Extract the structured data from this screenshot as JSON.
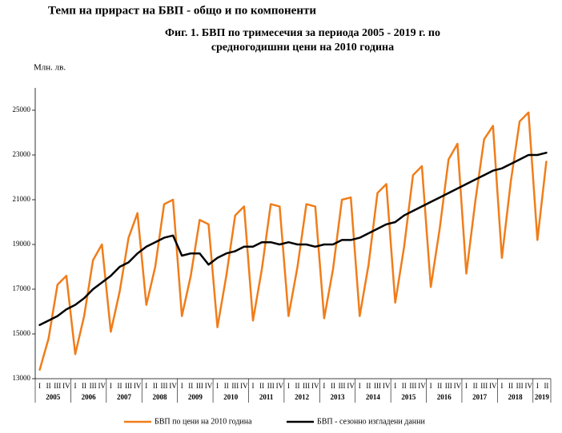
{
  "header": {
    "title": "Темп на прираст на БВП - общо и по компоненти"
  },
  "chart_data": {
    "type": "line",
    "title": [
      "Фиг. 1. БВП по тримесечия за периода 2005 - 2019 г. по",
      "средногодишни цени на 2010 година"
    ],
    "y_label": "Млн. лв.",
    "categories": [
      "I",
      "II",
      "III",
      "IV",
      "I",
      "II",
      "III",
      "IV",
      "I",
      "II",
      "III",
      "IV",
      "I",
      "II",
      "III",
      "IV",
      "I",
      "II",
      "III",
      "IV",
      "I",
      "II",
      "III",
      "IV",
      "I",
      "II",
      "III",
      "IV",
      "I",
      "II",
      "III",
      "IV",
      "I",
      "II",
      "III",
      "IV",
      "I",
      "II",
      "III",
      "IV",
      "I",
      "II",
      "III",
      "IV",
      "I",
      "II",
      "III",
      "IV",
      "I",
      "II",
      "III",
      "IV",
      "I",
      "II",
      "III",
      "IV",
      "I",
      "II"
    ],
    "years": [
      "2005",
      "2006",
      "2007",
      "2008",
      "2009",
      "2010",
      "2011",
      "2012",
      "2013",
      "2014",
      "2015",
      "2016",
      "2017",
      "2018",
      "2019"
    ],
    "series": [
      {
        "name": "БВП  по цени на 2010  година",
        "color": "#f07d1a",
        "values": [
          13400,
          14800,
          17200,
          17600,
          14100,
          15800,
          18300,
          19000,
          15100,
          16900,
          19300,
          20400,
          16300,
          18000,
          20800,
          21000,
          15800,
          17600,
          20100,
          19900,
          15300,
          17600,
          20300,
          20700,
          15600,
          17900,
          20800,
          20700,
          15800,
          18000,
          20800,
          20700,
          15700,
          17900,
          21000,
          21100,
          15800,
          18100,
          21300,
          21700,
          16400,
          18900,
          22100,
          22500,
          17100,
          19700,
          22800,
          23500,
          17700,
          20900,
          23700,
          24300,
          18400,
          21800,
          24500,
          24900,
          19200,
          22700
        ]
      },
      {
        "name": "БВП - сезонно изгладени данни",
        "color": "#000000",
        "values": [
          15400,
          15600,
          15800,
          16100,
          16300,
          16600,
          17000,
          17300,
          17600,
          18000,
          18200,
          18600,
          18900,
          19100,
          19300,
          19400,
          18500,
          18600,
          18600,
          18100,
          18400,
          18600,
          18700,
          18900,
          18900,
          19100,
          19100,
          19000,
          19100,
          19000,
          19000,
          18900,
          19000,
          19000,
          19200,
          19200,
          19300,
          19500,
          19700,
          19900,
          20000,
          20300,
          20500,
          20700,
          20900,
          21100,
          21300,
          21500,
          21700,
          21900,
          22100,
          22300,
          22400,
          22600,
          22800,
          23000,
          23000,
          23100
        ]
      }
    ],
    "ylim": [
      13000,
      26000
    ],
    "yticks": [
      13000,
      15000,
      17000,
      19000,
      21000,
      23000,
      25000
    ],
    "legend": "bottom"
  }
}
